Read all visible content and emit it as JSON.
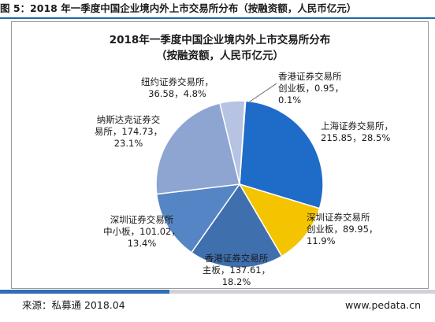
{
  "figure_caption": "图 5：2018 年一季度中国企业境内外上市交易所分布（按融资额，人民币亿元）",
  "source": "来源：私募通 2018.04",
  "website": "www.pedata.cn",
  "chart_data": {
    "type": "pie",
    "title": "2018年一季度中国企业境内外上市交易所分布",
    "subtitle": "（按融资额，人民币亿元）",
    "slices": [
      {
        "label": "香港证券交易所创业板",
        "value": 0.95,
        "percent": "0.1%",
        "color": "#2b6cc4",
        "label_lines": [
          "香港证券交易所",
          "创业板，0.95，",
          "0.1%"
        ]
      },
      {
        "label": "上海证券交易所",
        "value": 215.85,
        "percent": "28.5%",
        "color": "#1f6bc8",
        "label_lines": [
          "上海证券交易所，",
          "215.85，28.5%"
        ]
      },
      {
        "label": "深圳证券交易所创业板",
        "value": 89.95,
        "percent": "11.9%",
        "color": "#f5c400",
        "label_lines": [
          "深圳证券交易所",
          "创业板，89.95，",
          "11.9%"
        ]
      },
      {
        "label": "香港证券交易所主板",
        "value": 137.61,
        "percent": "18.2%",
        "color": "#3f6fad",
        "label_lines": [
          "香港证券交易所",
          "主板，137.61，",
          "18.2%"
        ]
      },
      {
        "label": "深圳证券交易所中小板",
        "value": 101.02,
        "percent": "13.4%",
        "color": "#5585c4",
        "label_lines": [
          "深圳证券交易所",
          "中小板，101.02，",
          "13.4%"
        ]
      },
      {
        "label": "纳斯达克证券交易所",
        "value": 174.73,
        "percent": "23.1%",
        "color": "#8ea5d2",
        "label_lines": [
          "纳斯达克证券交",
          "易所，174.73，",
          "23.1%"
        ]
      },
      {
        "label": "纽约证券交易所",
        "value": 36.58,
        "percent": "4.8%",
        "color": "#b6c3e2",
        "label_lines": [
          "纽约证券交易所，",
          "36.58，4.8%"
        ]
      }
    ]
  }
}
